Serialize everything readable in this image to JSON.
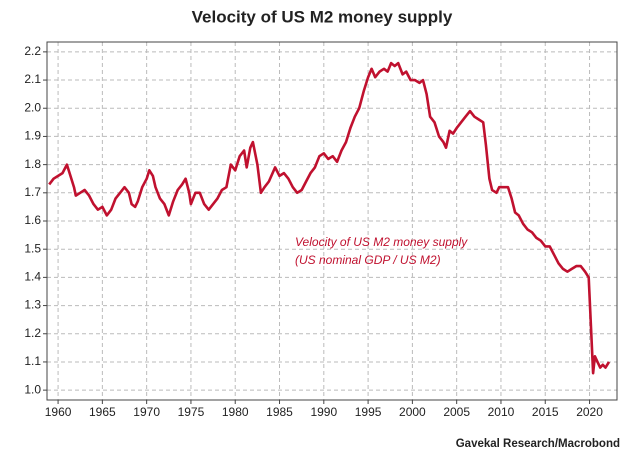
{
  "chart_data": {
    "type": "line",
    "title": "Velocity of US M2 money supply",
    "annotation": [
      "Velocity of US M2 money supply",
      "(US nominal GDP / US M2)"
    ],
    "source": "Gavekal Research/Macrobond",
    "x": [
      1959,
      1959.5,
      1960,
      1960.5,
      1961,
      1961.3,
      1961.8,
      1962,
      1962.5,
      1963,
      1963.5,
      1964,
      1964.5,
      1965,
      1965.5,
      1966,
      1966.5,
      1967,
      1967.5,
      1968,
      1968.3,
      1968.7,
      1969,
      1969.5,
      1970,
      1970.3,
      1970.7,
      1971,
      1971.5,
      1972,
      1972.5,
      1973,
      1973.5,
      1974,
      1974.4,
      1974.8,
      1975,
      1975.5,
      1976,
      1976.5,
      1977,
      1977.5,
      1978,
      1978.5,
      1979,
      1979.5,
      1980,
      1980.5,
      1981,
      1981.3,
      1981.7,
      1982,
      1982.5,
      1982.9,
      1983.3,
      1983.8,
      1984.5,
      1985,
      1985.5,
      1986,
      1986.5,
      1987,
      1987.5,
      1988,
      1988.5,
      1989,
      1989.5,
      1990,
      1990.5,
      1991,
      1991.5,
      1992,
      1992.5,
      1993,
      1993.5,
      1994,
      1994.5,
      1995,
      1995.4,
      1995.8,
      1996.3,
      1996.8,
      1997.2,
      1997.6,
      1998,
      1998.4,
      1998.9,
      1999.3,
      1999.8,
      2000.3,
      2000.8,
      2001.2,
      2001.6,
      2002,
      2002.5,
      2003,
      2003.5,
      2003.8,
      2004.2,
      2004.6,
      2005,
      2005.5,
      2006,
      2006.5,
      2007,
      2007.5,
      2008,
      2008.3,
      2008.7,
      2009,
      2009.5,
      2009.8,
      2010.3,
      2010.8,
      2011.2,
      2011.6,
      2012,
      2012.5,
      2013,
      2013.5,
      2014,
      2014.5,
      2015,
      2015.5,
      2016,
      2016.5,
      2017,
      2017.5,
      2018,
      2018.5,
      2019,
      2019.5,
      2019.9,
      2020.2,
      2020.4,
      2020.6,
      2020.9,
      2021.2,
      2021.5,
      2021.8,
      2022.2
    ],
    "series": [
      {
        "name": "Velocity of US M2 money supply",
        "color": "#c0112f",
        "values": [
          1.73,
          1.75,
          1.76,
          1.77,
          1.8,
          1.77,
          1.72,
          1.69,
          1.7,
          1.71,
          1.69,
          1.66,
          1.64,
          1.65,
          1.62,
          1.64,
          1.68,
          1.7,
          1.72,
          1.7,
          1.66,
          1.65,
          1.67,
          1.72,
          1.75,
          1.78,
          1.76,
          1.72,
          1.68,
          1.66,
          1.62,
          1.67,
          1.71,
          1.73,
          1.75,
          1.7,
          1.66,
          1.7,
          1.7,
          1.66,
          1.64,
          1.66,
          1.68,
          1.71,
          1.72,
          1.8,
          1.78,
          1.83,
          1.85,
          1.79,
          1.86,
          1.88,
          1.8,
          1.7,
          1.72,
          1.74,
          1.79,
          1.76,
          1.77,
          1.75,
          1.72,
          1.7,
          1.71,
          1.74,
          1.77,
          1.79,
          1.83,
          1.84,
          1.82,
          1.83,
          1.81,
          1.85,
          1.88,
          1.93,
          1.97,
          2.0,
          2.06,
          2.11,
          2.14,
          2.11,
          2.13,
          2.14,
          2.13,
          2.16,
          2.15,
          2.16,
          2.12,
          2.13,
          2.1,
          2.1,
          2.09,
          2.1,
          2.05,
          1.97,
          1.95,
          1.9,
          1.88,
          1.86,
          1.92,
          1.91,
          1.93,
          1.95,
          1.97,
          1.99,
          1.97,
          1.96,
          1.95,
          1.87,
          1.75,
          1.71,
          1.7,
          1.72,
          1.72,
          1.72,
          1.68,
          1.63,
          1.62,
          1.59,
          1.57,
          1.56,
          1.54,
          1.53,
          1.51,
          1.51,
          1.48,
          1.45,
          1.43,
          1.42,
          1.43,
          1.44,
          1.44,
          1.42,
          1.4,
          1.2,
          1.06,
          1.12,
          1.1,
          1.08,
          1.09,
          1.08,
          1.1
        ]
      }
    ],
    "xlim": [
      1958.75,
      2023.1
    ],
    "xticks": [
      1960,
      1965,
      1970,
      1975,
      1980,
      1985,
      1990,
      1995,
      2000,
      2005,
      2010,
      2015,
      2020
    ],
    "ylim": [
      0.965,
      2.235
    ],
    "yticks": [
      {
        "value": 1.0,
        "label": "1.0"
      },
      1.1,
      1.2,
      1.3,
      1.4,
      1.5,
      1.6,
      1.7,
      1.8,
      1.9,
      {
        "value": 2.0,
        "label": "2.0"
      },
      2.1,
      2.2
    ],
    "grid": true
  }
}
